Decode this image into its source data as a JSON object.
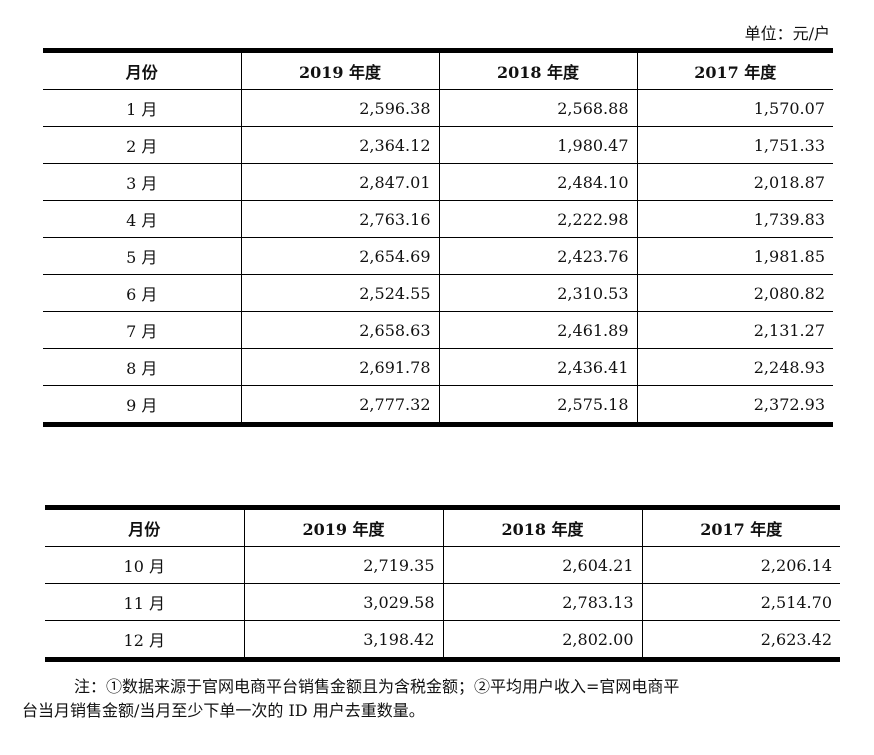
{
  "unit_label": "单位：元/户",
  "table1": {
    "headers": [
      "月份",
      "2019 年度",
      "2018 年度",
      "2017 年度"
    ],
    "rows": [
      [
        "1 月",
        "2,596.38",
        "2,568.88",
        "1,570.07"
      ],
      [
        "2 月",
        "2,364.12",
        "1,980.47",
        "1,751.33"
      ],
      [
        "3 月",
        "2,847.01",
        "2,484.10",
        "2,018.87"
      ],
      [
        "4 月",
        "2,763.16",
        "2,222.98",
        "1,739.83"
      ],
      [
        "5 月",
        "2,654.69",
        "2,423.76",
        "1,981.85"
      ],
      [
        "6 月",
        "2,524.55",
        "2,310.53",
        "2,080.82"
      ],
      [
        "7 月",
        "2,658.63",
        "2,461.89",
        "2,131.27"
      ],
      [
        "8 月",
        "2,691.78",
        "2,436.41",
        "2,248.93"
      ],
      [
        "9 月",
        "2,777.32",
        "2,575.18",
        "2,372.93"
      ]
    ]
  },
  "table2": {
    "headers": [
      "月份",
      "2019 年度",
      "2018 年度",
      "2017 年度"
    ],
    "rows": [
      [
        "10 月",
        "2,719.35",
        "2,604.21",
        "2,206.14"
      ],
      [
        "11 月",
        "3,029.58",
        "2,783.13",
        "2,514.70"
      ],
      [
        "12 月",
        "3,198.42",
        "2,802.00",
        "2,623.42"
      ]
    ]
  },
  "note": {
    "line1": "注：①数据来源于官网电商平台销售金额且为含税金额；②平均用户收入=官网电商平",
    "line2": "台当月销售金额/当月至少下单一次的 ID 用户去重数量。"
  }
}
